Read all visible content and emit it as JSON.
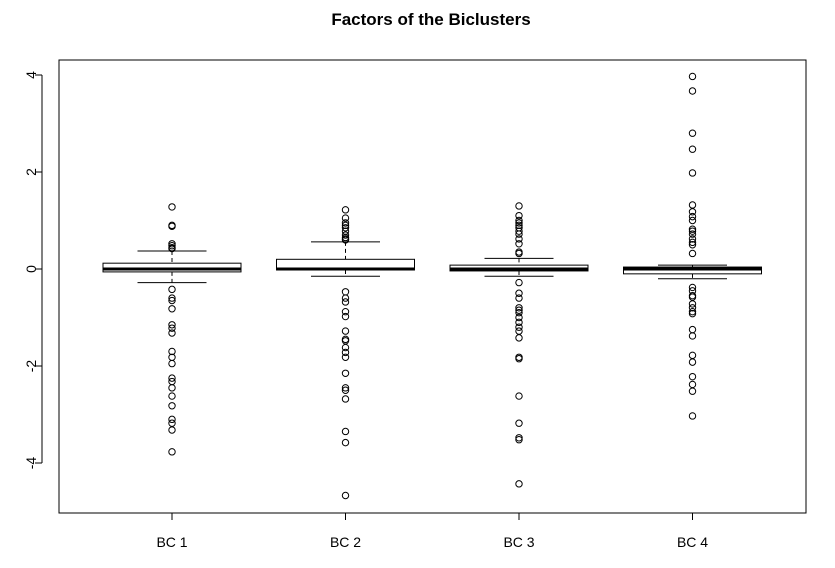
{
  "chart_data": {
    "type": "boxplot",
    "title": "Factors of the Biclusters",
    "xlabel": "",
    "ylabel": "",
    "ylim": [
      -5.0,
      4.5
    ],
    "yticks": [
      -4,
      -2,
      0,
      2,
      4
    ],
    "ytick_labels": [
      "-4",
      "-2",
      "0",
      "2",
      "4"
    ],
    "grid": false,
    "categories": [
      "BC 1",
      "BC 2",
      "BC 3",
      "BC 4"
    ],
    "boxes": [
      {
        "label": "BC 1",
        "whisker_low": -0.28,
        "q1": -0.06,
        "median": 0.0,
        "q3": 0.12,
        "whisker_high": 0.37,
        "outliers": [
          1.28,
          0.9,
          0.88,
          0.52,
          0.48,
          0.44,
          0.42,
          -0.42,
          -0.6,
          -0.65,
          -0.82,
          -1.15,
          -1.22,
          -1.32,
          -1.7,
          -1.82,
          -1.95,
          -2.25,
          -2.32,
          -2.45,
          -2.62,
          -2.82,
          -3.1,
          -3.18,
          -3.32,
          -3.77
        ]
      },
      {
        "label": "BC 2",
        "whisker_low": -0.15,
        "q1": -0.02,
        "median": 0.0,
        "q3": 0.2,
        "whisker_high": 0.56,
        "outliers": [
          1.22,
          1.05,
          0.95,
          0.9,
          0.85,
          0.78,
          0.7,
          0.65,
          0.62,
          0.6,
          -0.47,
          -0.6,
          -0.68,
          -0.88,
          -0.98,
          -1.28,
          -1.45,
          -1.48,
          -1.62,
          -1.72,
          -1.82,
          -2.15,
          -2.45,
          -2.5,
          -2.68,
          -3.35,
          -3.58,
          -4.67
        ]
      },
      {
        "label": "BC 3",
        "whisker_low": -0.15,
        "q1": -0.04,
        "median": 0.0,
        "q3": 0.08,
        "whisker_high": 0.22,
        "outliers": [
          1.3,
          1.1,
          1.0,
          0.95,
          0.9,
          0.85,
          0.78,
          0.72,
          0.62,
          0.52,
          0.35,
          0.32,
          -0.28,
          -0.5,
          -0.6,
          -0.8,
          -0.85,
          -0.9,
          -1.0,
          -1.1,
          -1.2,
          -1.28,
          -1.42,
          -1.82,
          -1.85,
          -2.62,
          -3.18,
          -3.48,
          -3.52,
          -4.43
        ]
      },
      {
        "label": "BC 4",
        "whisker_low": -0.2,
        "q1": -0.1,
        "median": 0.0,
        "q3": 0.04,
        "whisker_high": 0.08,
        "outliers": [
          3.97,
          3.67,
          2.8,
          2.47,
          1.98,
          1.32,
          1.18,
          1.08,
          1.0,
          0.82,
          0.78,
          0.72,
          0.62,
          0.55,
          0.5,
          0.32,
          -0.38,
          -0.45,
          -0.55,
          -0.58,
          -0.72,
          -0.8,
          -0.88,
          -0.92,
          -1.25,
          -1.38,
          -1.78,
          -1.92,
          -2.22,
          -2.38,
          -2.52,
          -3.03
        ]
      }
    ]
  },
  "colors": {
    "ink": "#000000",
    "background": "#ffffff"
  }
}
